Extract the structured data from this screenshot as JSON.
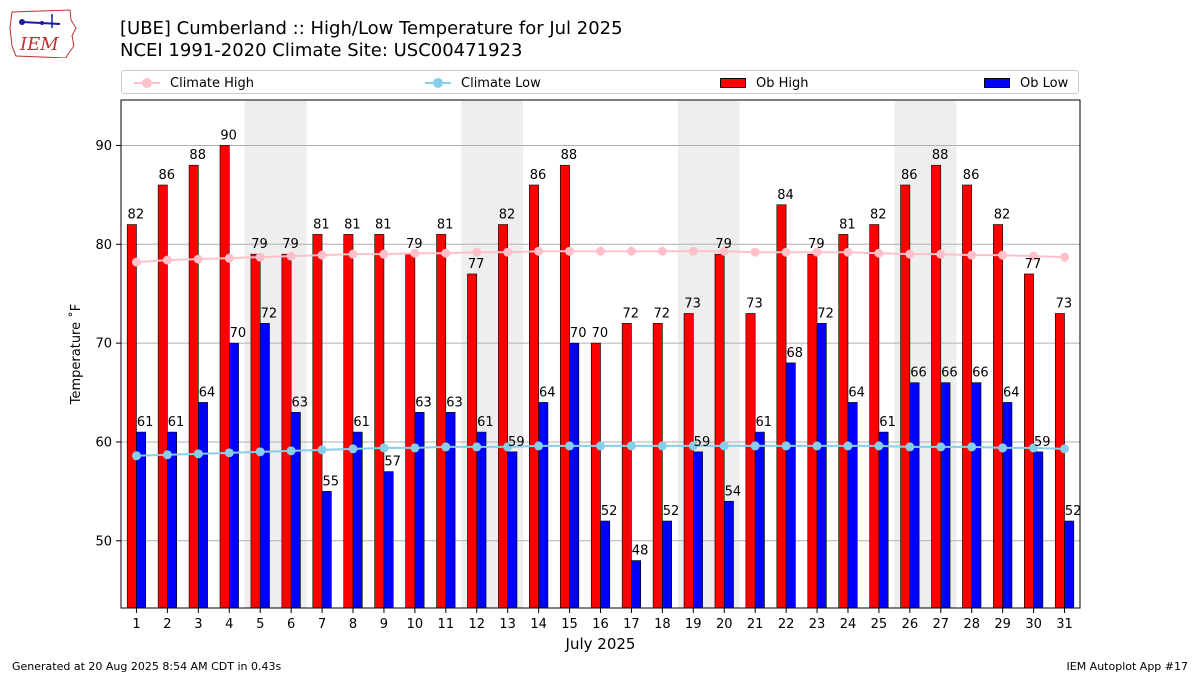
{
  "header": {
    "title_line1": "[UBE] Cumberland :: High/Low Temperature for Jul 2025",
    "title_line2": "NCEI 1991-2020 Climate Site: USC00471923"
  },
  "logo": {
    "text": "IEM",
    "icon": "iem-iowa-logo"
  },
  "legend": {
    "placement": "top, above plot",
    "items": [
      {
        "label": "Climate High",
        "kind": "line-marker",
        "color": "#ffc0cb"
      },
      {
        "label": "Climate Low",
        "kind": "line-marker",
        "color": "#87ceeb"
      },
      {
        "label": "Ob High",
        "kind": "bar",
        "color": "#ff0000"
      },
      {
        "label": "Ob Low",
        "kind": "bar",
        "color": "#0000ff"
      }
    ]
  },
  "chart_data": {
    "type": "bar",
    "xlabel": "July 2025",
    "ylabel": "Temperature $^\\circ$F",
    "ylim": [
      43.2,
      94.6
    ],
    "yticks": [
      50,
      60,
      70,
      80,
      90
    ],
    "grid": "horizontal",
    "categories": [
      "1",
      "2",
      "3",
      "4",
      "5",
      "6",
      "7",
      "8",
      "9",
      "10",
      "11",
      "12",
      "13",
      "14",
      "15",
      "16",
      "17",
      "18",
      "19",
      "20",
      "21",
      "22",
      "23",
      "24",
      "25",
      "26",
      "27",
      "28",
      "29",
      "30",
      "31"
    ],
    "weekend_shading_days": [
      5,
      6,
      12,
      13,
      19,
      20,
      26,
      27
    ],
    "series": [
      {
        "name": "Ob High",
        "kind": "bar",
        "color": "#ff0000",
        "labels_shown": true,
        "values": [
          82,
          86,
          88,
          90,
          79,
          79,
          81,
          81,
          81,
          79,
          81,
          77,
          82,
          86,
          88,
          70,
          72,
          72,
          73,
          79,
          73,
          84,
          79,
          81,
          82,
          86,
          88,
          86,
          82,
          77,
          73
        ],
        "display_labels": [
          "82",
          "86",
          "88",
          "90",
          "79",
          "79",
          "81",
          "81",
          "81",
          "79",
          "81",
          "77",
          "82",
          "86",
          "88",
          "70",
          "72",
          "72",
          "73",
          "79",
          "73",
          "84",
          "79",
          "81",
          "82",
          "86",
          "88",
          "86",
          "82",
          "77",
          "73"
        ]
      },
      {
        "name": "Ob Low",
        "kind": "bar",
        "color": "#0000ff",
        "labels_shown": true,
        "values": [
          61,
          61,
          64,
          70,
          72,
          63,
          55,
          61,
          57,
          63,
          63,
          61,
          59,
          64,
          70,
          52,
          48,
          52,
          59,
          54,
          61,
          68,
          72,
          64,
          61,
          66,
          66,
          66,
          64,
          59,
          52
        ],
        "display_labels": [
          "61",
          "61",
          "64",
          "70",
          "72",
          "63",
          "55",
          "61",
          "57",
          "63",
          "63",
          "61",
          "59",
          "64",
          "70",
          "52",
          "48",
          "52",
          "59",
          "54",
          "61",
          "68",
          "72",
          "64",
          "61",
          "66",
          "66",
          "66",
          "64",
          "59",
          "52"
        ]
      },
      {
        "name": "Climate High",
        "kind": "line",
        "color": "#ffc0cb",
        "values": [
          78.2,
          78.4,
          78.5,
          78.6,
          78.7,
          78.8,
          78.9,
          79.0,
          79.0,
          79.1,
          79.1,
          79.2,
          79.2,
          79.3,
          79.3,
          79.3,
          79.3,
          79.3,
          79.3,
          79.3,
          79.2,
          79.2,
          79.2,
          79.2,
          79.1,
          79.0,
          79.0,
          78.9,
          78.9,
          78.8,
          78.7
        ]
      },
      {
        "name": "Climate Low",
        "kind": "line",
        "color": "#87ceeb",
        "values": [
          58.6,
          58.7,
          58.8,
          58.9,
          59.0,
          59.1,
          59.2,
          59.3,
          59.4,
          59.4,
          59.5,
          59.5,
          59.5,
          59.6,
          59.6,
          59.6,
          59.6,
          59.6,
          59.6,
          59.6,
          59.6,
          59.6,
          59.6,
          59.6,
          59.6,
          59.5,
          59.5,
          59.5,
          59.4,
          59.4,
          59.3
        ]
      }
    ]
  },
  "footer": {
    "left": "Generated at 20 Aug 2025 8:54 AM CDT in 0.43s",
    "right": "IEM Autoplot App #17"
  }
}
